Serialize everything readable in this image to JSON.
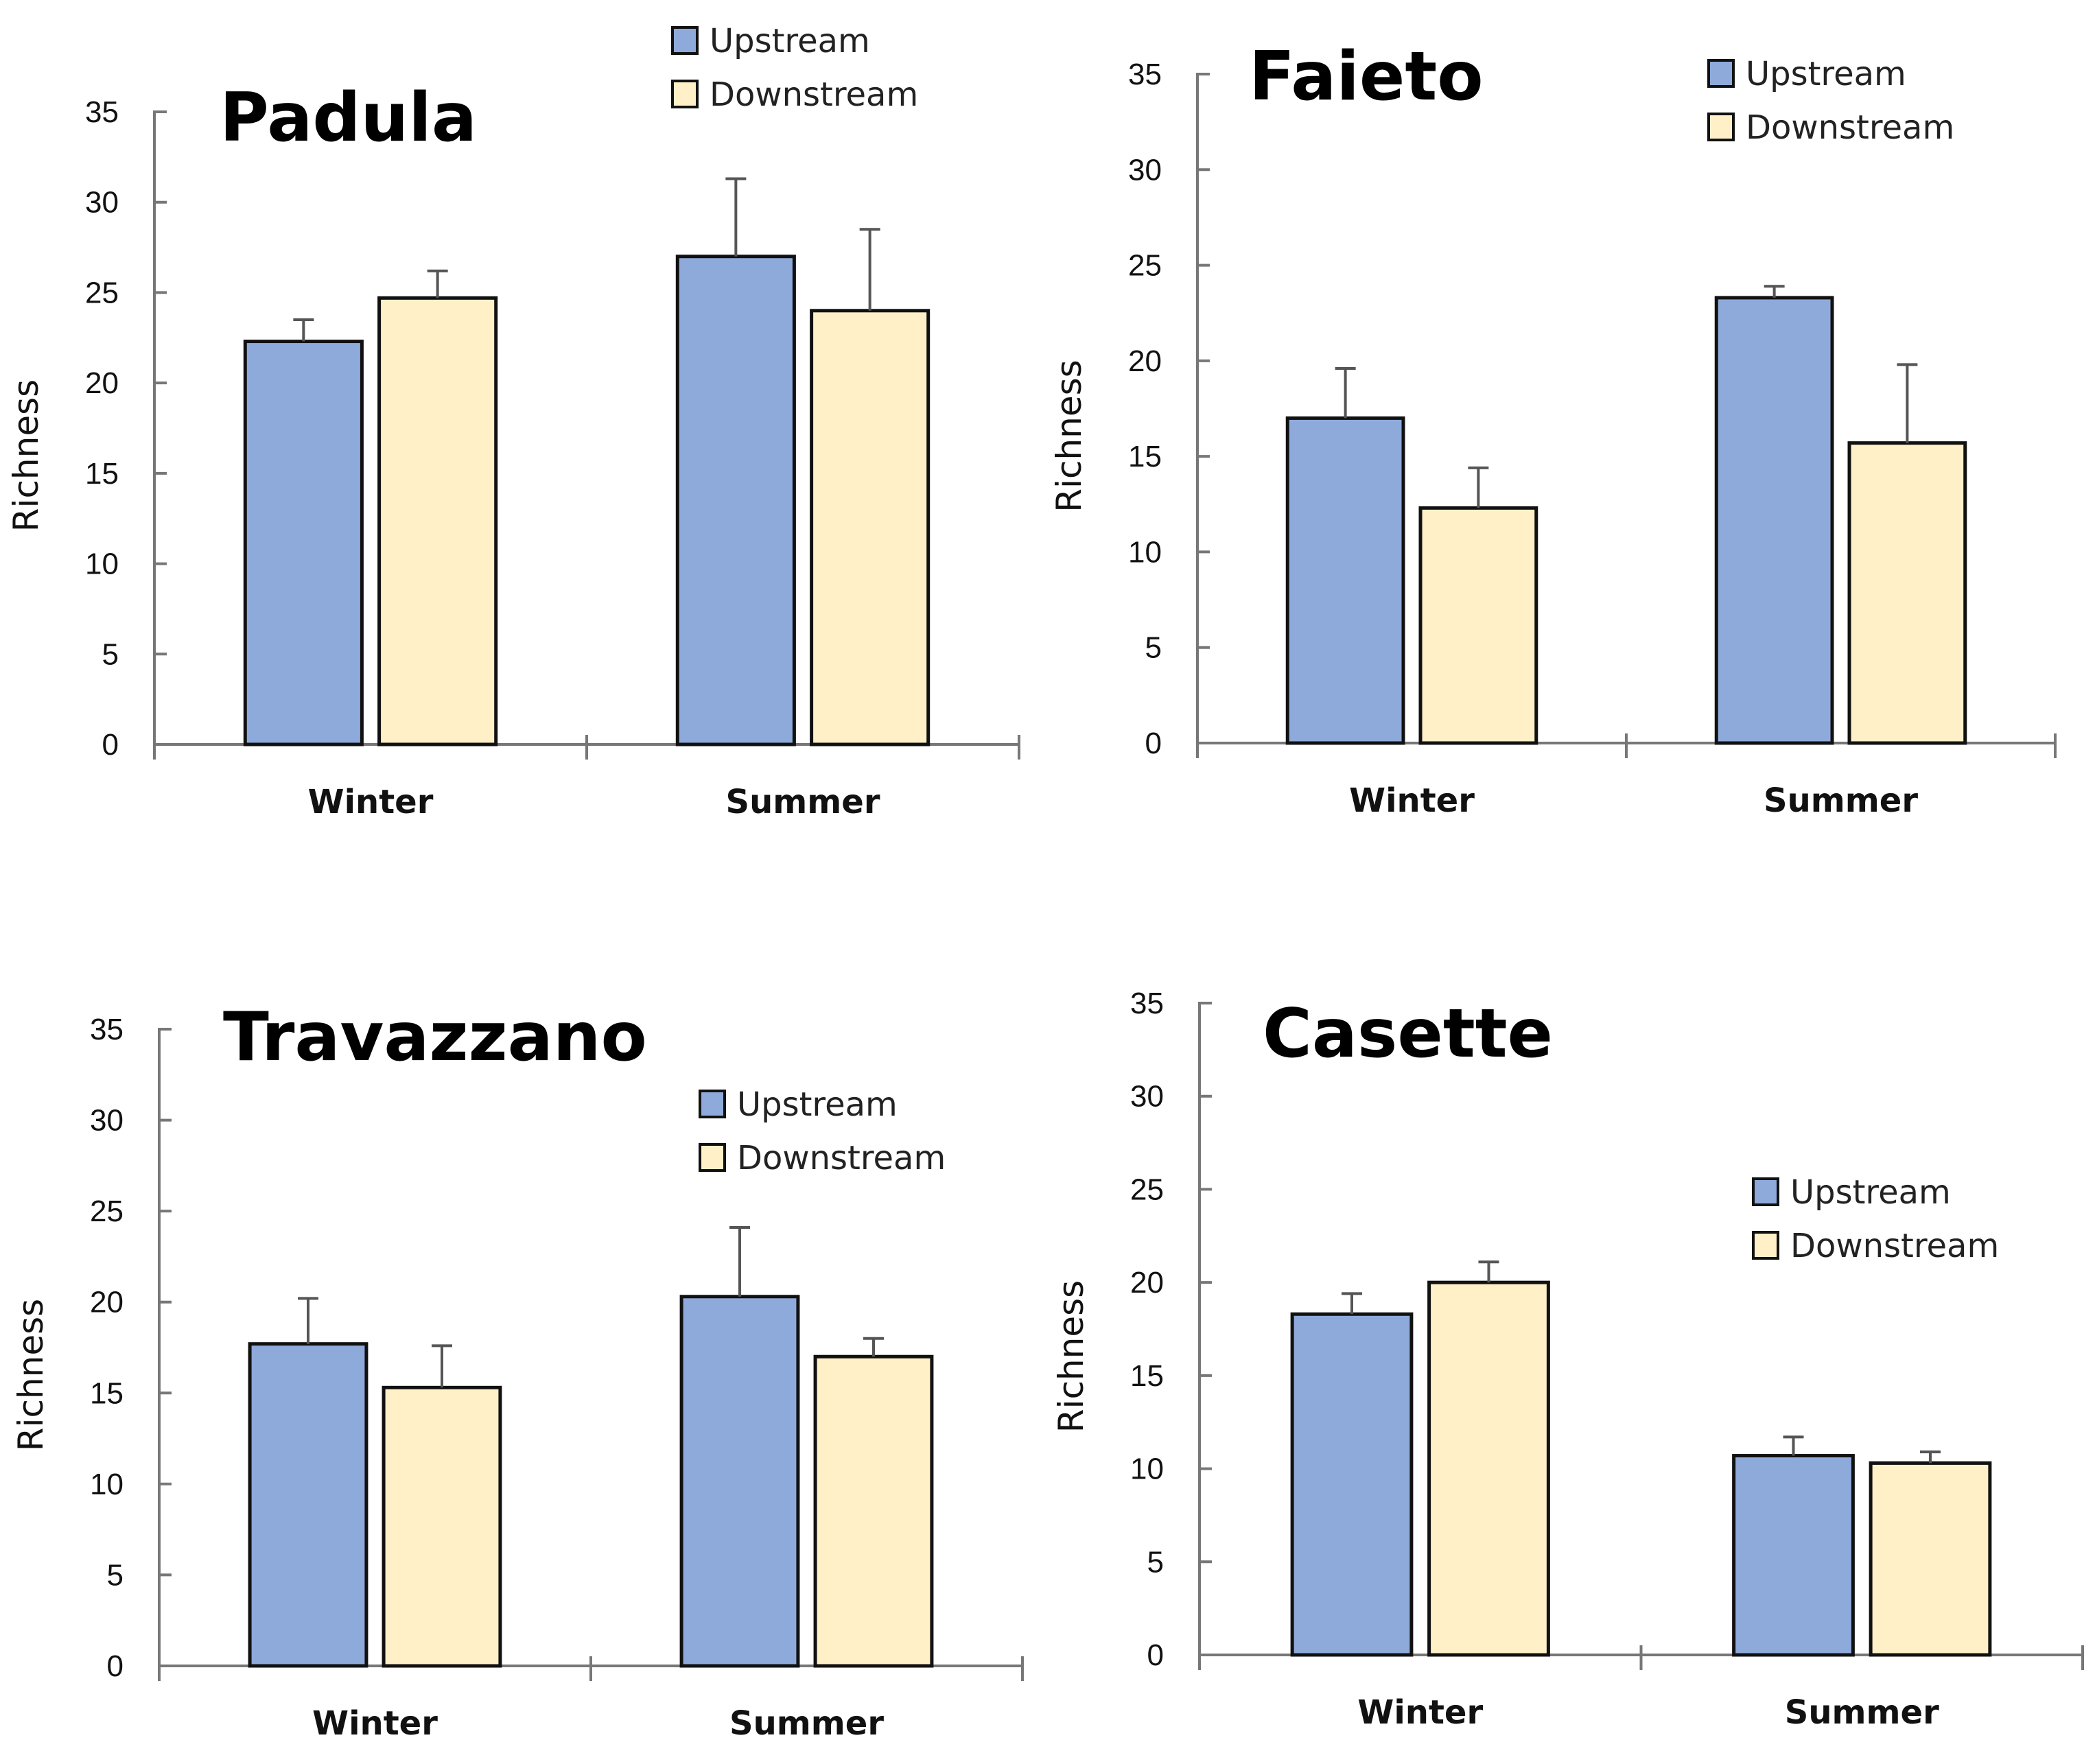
{
  "colors": {
    "upstream": "#8eaadb",
    "downstream": "#fff0c8"
  },
  "chart_data": [
    {
      "type": "bar",
      "title": "Padula",
      "categories": [
        "Winter",
        "Summer"
      ],
      "ylabel": "Richness",
      "xlabel": "",
      "ylim": [
        0,
        35
      ],
      "yticks": [
        "0",
        "5",
        "10",
        "15",
        "20",
        "25",
        "30",
        "35"
      ],
      "legend": "top-right",
      "series": [
        {
          "name": "Upstream",
          "values": [
            22.3,
            27.0
          ],
          "errors": [
            1.2,
            4.3
          ]
        },
        {
          "name": "Downstream",
          "values": [
            24.7,
            24.0
          ],
          "errors": [
            1.5,
            4.5
          ]
        }
      ]
    },
    {
      "type": "bar",
      "title": "Faieto",
      "categories": [
        "Winter",
        "Summer"
      ],
      "ylabel": "Richness",
      "xlabel": "",
      "ylim": [
        0,
        35
      ],
      "yticks": [
        "0",
        "5",
        "10",
        "15",
        "20",
        "25",
        "30",
        "35"
      ],
      "legend": "top-right",
      "series": [
        {
          "name": "Upstream",
          "values": [
            17.0,
            23.3
          ],
          "errors": [
            2.6,
            0.6
          ]
        },
        {
          "name": "Downstream",
          "values": [
            12.3,
            15.7
          ],
          "errors": [
            2.1,
            4.1
          ]
        }
      ]
    },
    {
      "type": "bar",
      "title": "Travazzano",
      "categories": [
        "Winter",
        "Summer"
      ],
      "ylabel": "Richness",
      "xlabel": "",
      "ylim": [
        0,
        35
      ],
      "yticks": [
        "0",
        "5",
        "10",
        "15",
        "20",
        "25",
        "30",
        "35"
      ],
      "legend": "top-right",
      "series": [
        {
          "name": "Upstream",
          "values": [
            17.7,
            20.3
          ],
          "errors": [
            2.5,
            3.8
          ]
        },
        {
          "name": "Downstream",
          "values": [
            15.3,
            17.0
          ],
          "errors": [
            2.3,
            1.0
          ]
        }
      ]
    },
    {
      "type": "bar",
      "title": "Casette",
      "categories": [
        "Winter",
        "Summer"
      ],
      "ylabel": "Richness",
      "xlabel": "",
      "ylim": [
        0,
        35
      ],
      "yticks": [
        "0",
        "5",
        "10",
        "15",
        "20",
        "25",
        "30",
        "35"
      ],
      "legend": "right",
      "series": [
        {
          "name": "Upstream",
          "values": [
            18.3,
            10.7
          ],
          "errors": [
            1.1,
            1.0
          ]
        },
        {
          "name": "Downstream",
          "values": [
            20.0,
            10.3
          ],
          "errors": [
            1.1,
            0.6
          ]
        }
      ]
    }
  ]
}
